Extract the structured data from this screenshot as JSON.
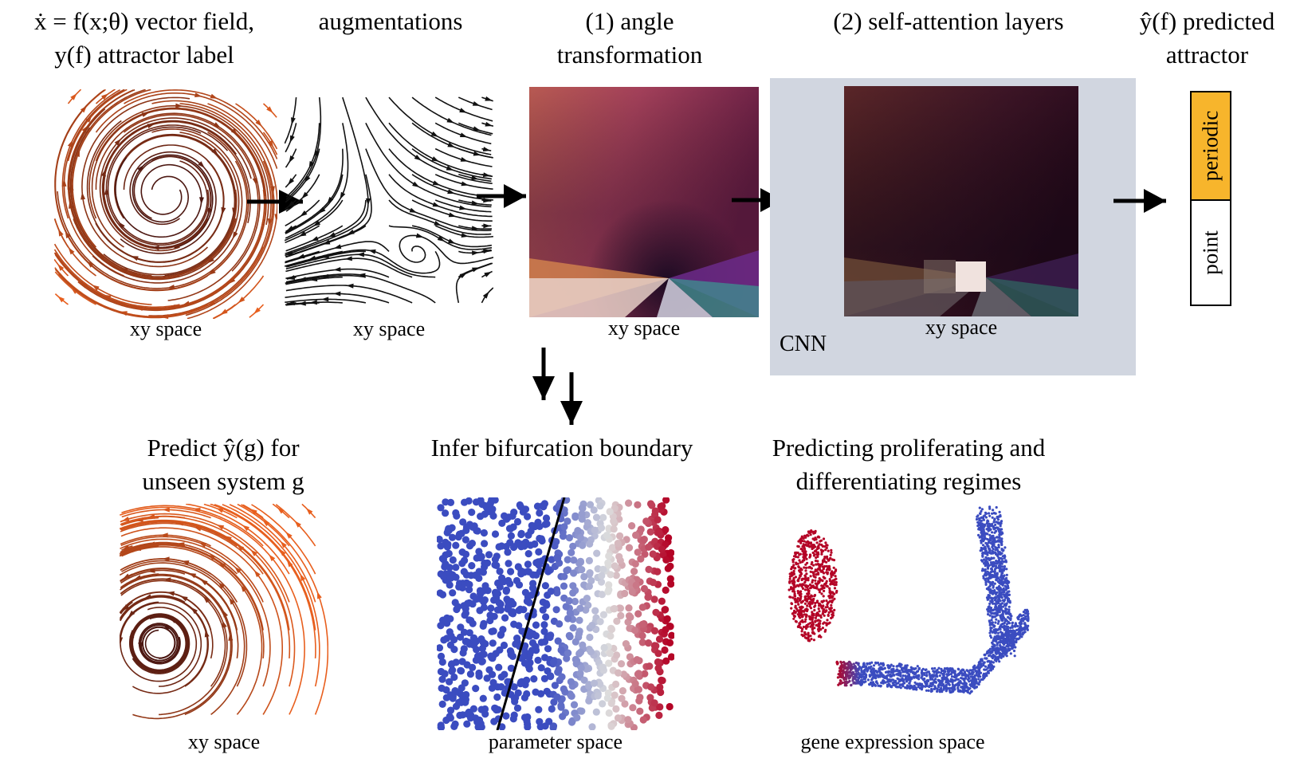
{
  "top": {
    "col1": {
      "line1": "ẋ = f(x;θ) vector field,",
      "line2": "y(f) attractor label",
      "caption": "xy space"
    },
    "col2": {
      "line1": "augmentations",
      "caption": "xy space"
    },
    "col3": {
      "line1": "(1) angle",
      "line2": "transformation",
      "caption": "xy space"
    },
    "col4": {
      "line1": "(2) self-attention layers",
      "caption": "xy space",
      "box_label": "CNN"
    },
    "col5": {
      "line1": "ŷ(f) predicted",
      "line2": "attractor",
      "label_periodic": "periodic",
      "label_point": "point"
    }
  },
  "bottom": {
    "col1": {
      "line1": "Predict ŷ(g) for",
      "line2": "unseen system g",
      "caption": "xy space"
    },
    "col2": {
      "line1": "Infer bifurcation boundary",
      "caption": "parameter space"
    },
    "col3": {
      "line1": "Predicting proliferating and",
      "line2": "differentiating regimes",
      "caption": "gene expression space"
    }
  },
  "colors": {
    "cnn_box": "#d1d6e0",
    "periodic": "#f7b52c",
    "stream_dark": "#3a0f10",
    "stream_light": "#e85f1e",
    "blue": "#3b4cc0",
    "red": "#b40426"
  }
}
